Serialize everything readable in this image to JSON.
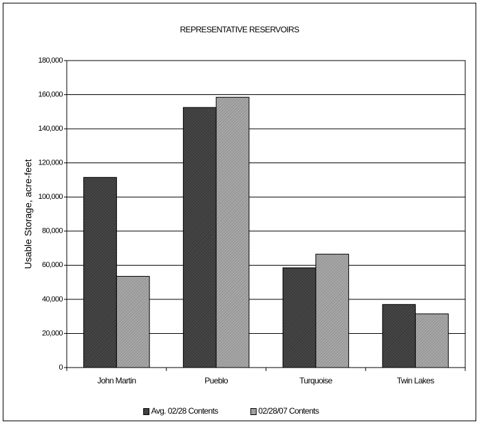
{
  "chart_data": {
    "type": "bar",
    "title": "REPRESENTATIVE RESERVOIRS",
    "y_label": "Usable Storage, acre-feet",
    "categories": [
      "John Martin",
      "Pueblo",
      "Turquoise",
      "Twin Lakes"
    ],
    "series": [
      {
        "name": "Avg. 02/28 Contents",
        "color": "#474747",
        "values": [
          111500,
          152500,
          58500,
          37000
        ]
      },
      {
        "name": "02/28/07 Contents",
        "color": "#a8a8a8",
        "values": [
          53500,
          158500,
          66500,
          31500
        ]
      }
    ],
    "ylim": [
      0,
      180000
    ],
    "yticks": [
      0,
      {
        "value": 20000,
        "label": "20,000"
      },
      {
        "value": 40000,
        "label": "40,000"
      },
      {
        "value": 60000,
        "label": "60,000"
      },
      {
        "value": 80000,
        "label": "80,000"
      },
      {
        "value": 100000,
        "label": "100,000"
      },
      {
        "value": 120000,
        "label": "120,000"
      },
      {
        "value": 140000,
        "label": "140,000"
      },
      {
        "value": 160000,
        "label": "160,000"
      },
      {
        "value": 180000,
        "label": "180,000"
      }
    ],
    "grid": true,
    "legend": "bottom"
  }
}
